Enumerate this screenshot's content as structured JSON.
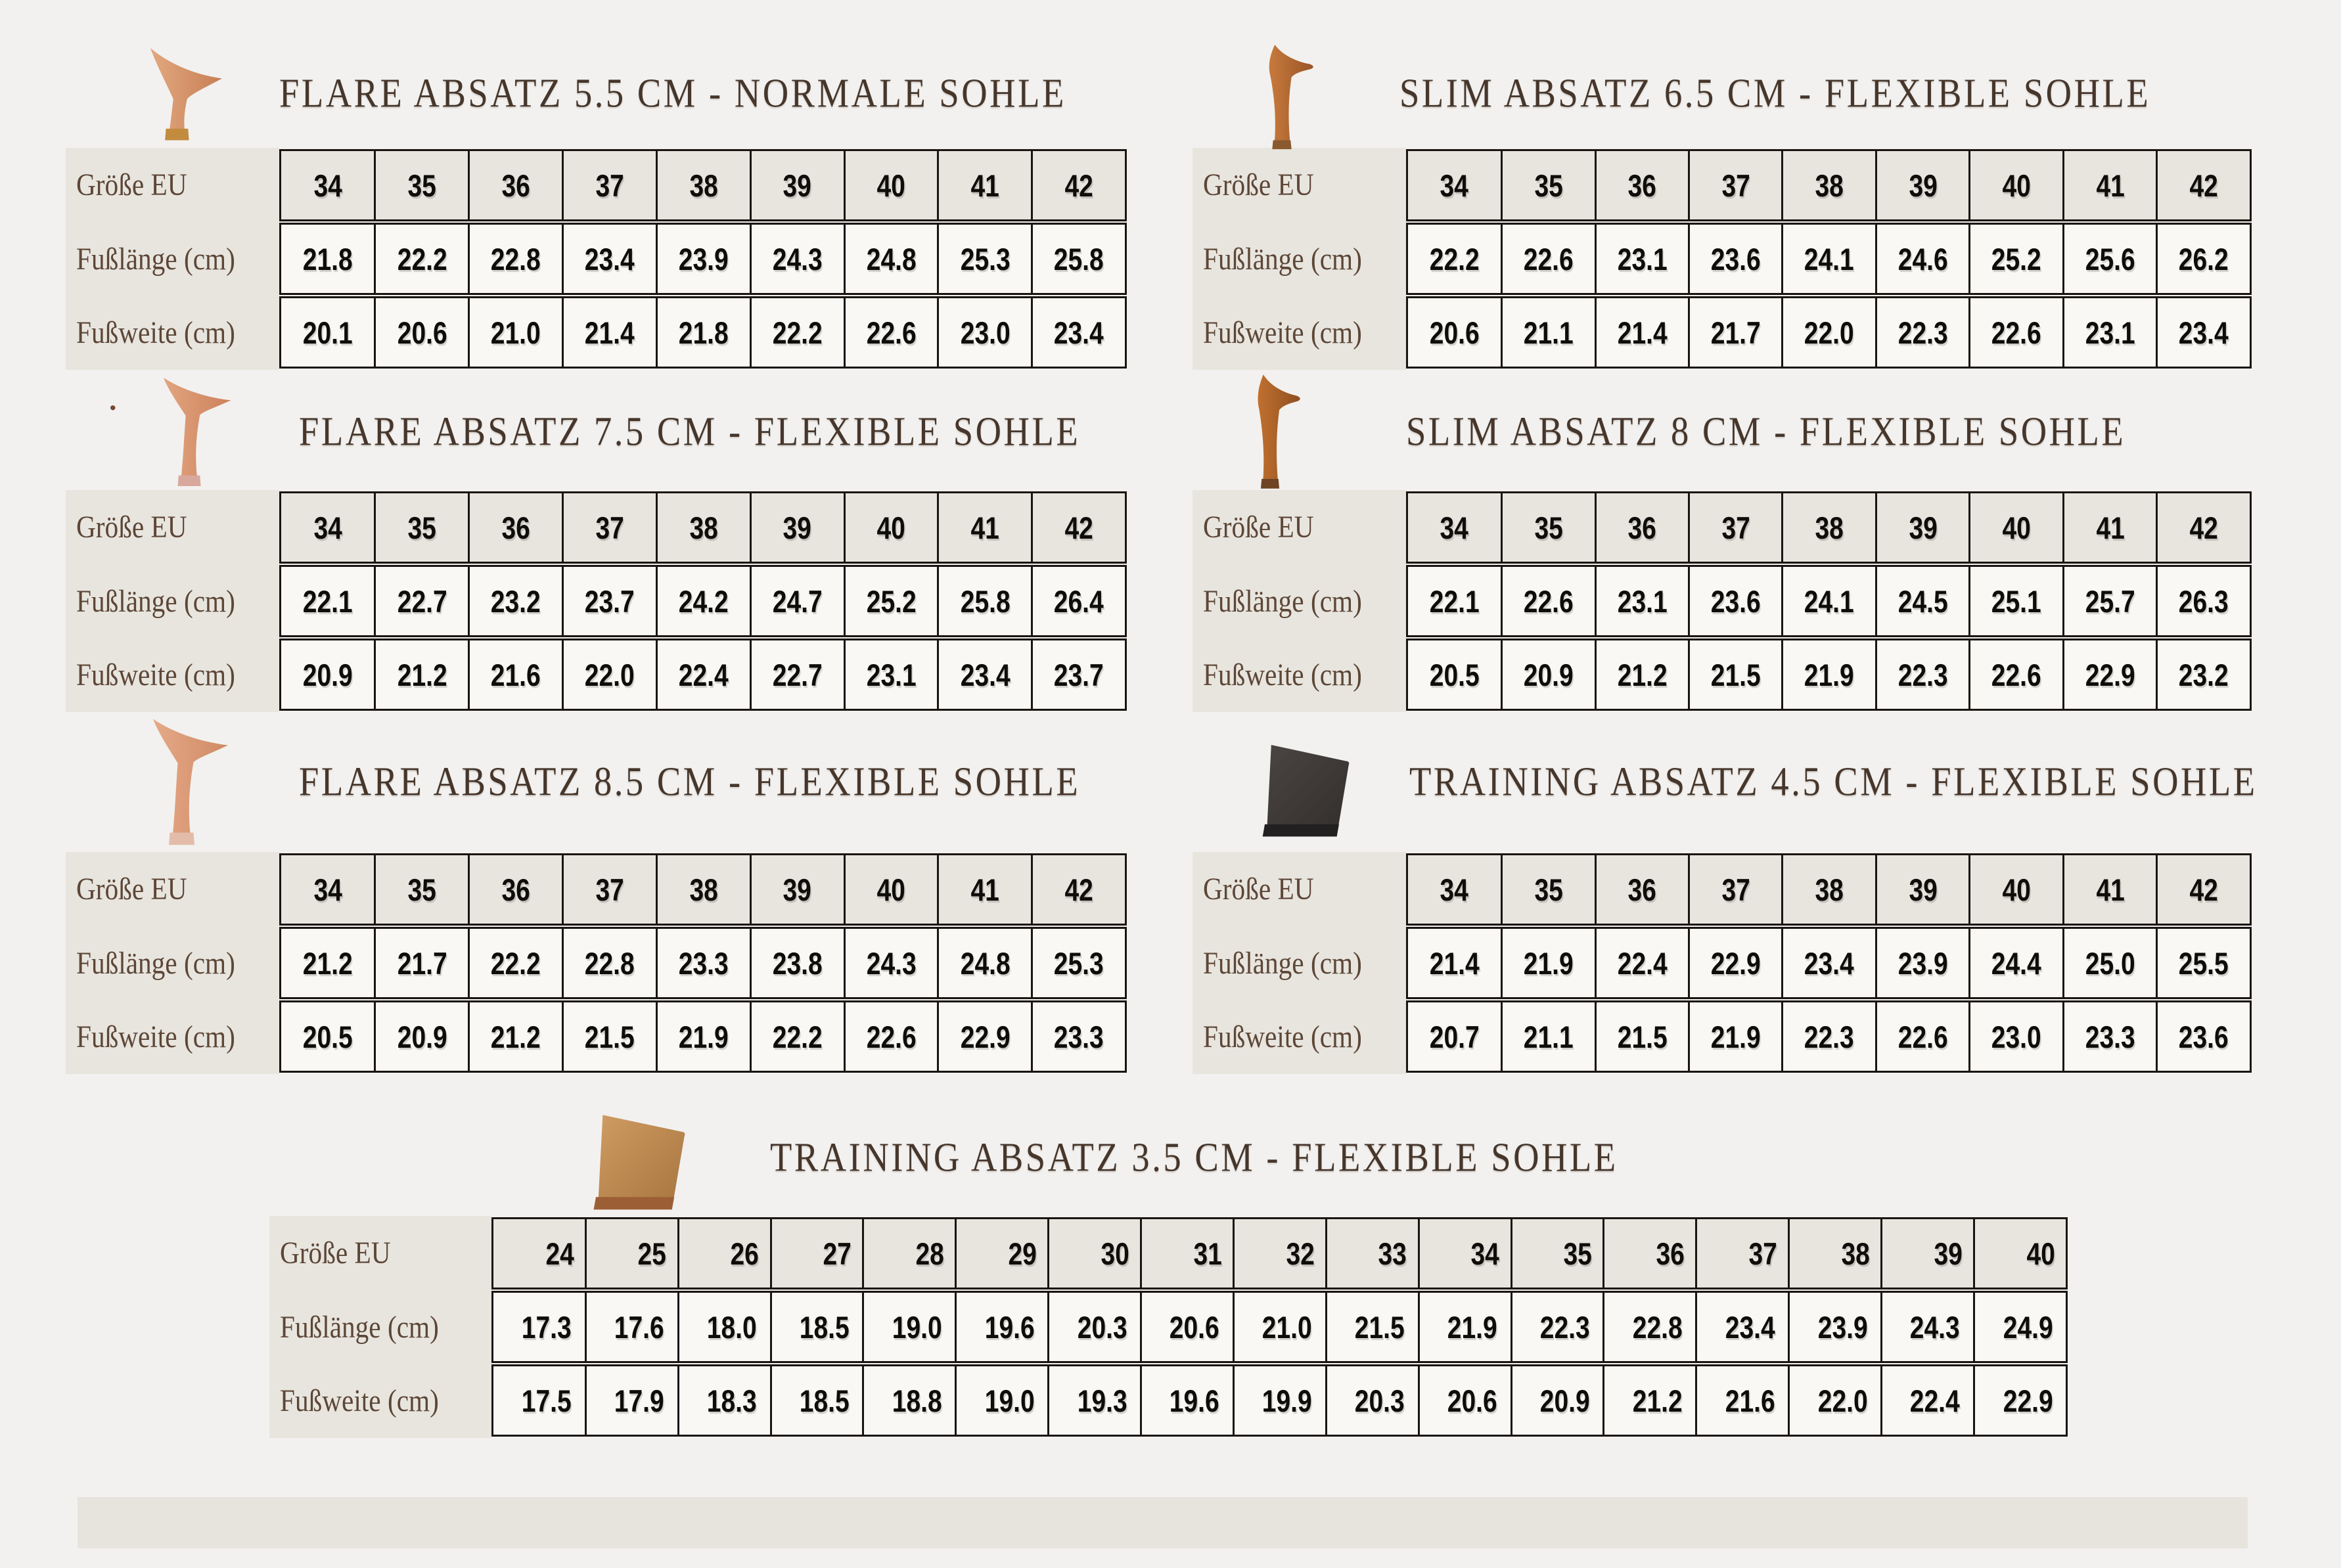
{
  "page": {
    "colors": {
      "bg": "#f2f1ef",
      "beige": "#e8e5df",
      "cell": "#f9f8f5",
      "border": "#1a1511",
      "title": "#46362b",
      "label": "#5d4737",
      "number": "#0f0d0a",
      "footer": "#e7e4de"
    },
    "stray_mark": "."
  },
  "row_labels": {
    "size": "Größe EU",
    "length": "Fußlänge (cm)",
    "width": "Fußweite (cm)"
  },
  "tables": [
    {
      "title": "FLARE ABSATZ 5.5 CM - NORMALE SOHLE",
      "icon_name": "flare-heel-icon",
      "icon_type": "flare-short",
      "icon_colors": {
        "body1": "#e2a87f",
        "body2": "#c87f55",
        "tip": "#c28b3e"
      },
      "sizes": [
        "34",
        "35",
        "36",
        "37",
        "38",
        "39",
        "40",
        "41",
        "42"
      ],
      "foot_length_cm": [
        "21.8",
        "22.2",
        "22.8",
        "23.4",
        "23.9",
        "24.3",
        "24.8",
        "25.3",
        "25.8"
      ],
      "foot_width_cm": [
        "20.1",
        "20.6",
        "21.0",
        "21.4",
        "21.8",
        "22.2",
        "22.6",
        "23.0",
        "23.4"
      ]
    },
    {
      "title": "SLIM ABSATZ 6.5 CM - FLEXIBLE SOHLE",
      "icon_name": "slim-heel-icon",
      "icon_type": "slim",
      "icon_colors": {
        "body1": "#c77a3d",
        "body2": "#9a5526",
        "tip": "#8a5a2e"
      },
      "sizes": [
        "34",
        "35",
        "36",
        "37",
        "38",
        "39",
        "40",
        "41",
        "42"
      ],
      "foot_length_cm": [
        "22.2",
        "22.6",
        "23.1",
        "23.6",
        "24.1",
        "24.6",
        "25.2",
        "25.6",
        "26.2"
      ],
      "foot_width_cm": [
        "20.6",
        "21.1",
        "21.4",
        "21.7",
        "22.0",
        "22.3",
        "22.6",
        "23.1",
        "23.4"
      ]
    },
    {
      "title": "FLARE ABSATZ 7.5 CM - FLEXIBLE SOHLE",
      "icon_name": "flare-heel-icon",
      "icon_type": "flare-tall",
      "icon_colors": {
        "body1": "#e2a47f",
        "body2": "#cc825c",
        "tip": "#d8a89c"
      },
      "sizes": [
        "34",
        "35",
        "36",
        "37",
        "38",
        "39",
        "40",
        "41",
        "42"
      ],
      "foot_length_cm": [
        "22.1",
        "22.7",
        "23.2",
        "23.7",
        "24.2",
        "24.7",
        "25.2",
        "25.8",
        "26.4"
      ],
      "foot_width_cm": [
        "20.9",
        "21.2",
        "21.6",
        "22.0",
        "22.4",
        "22.7",
        "23.1",
        "23.4",
        "23.7"
      ]
    },
    {
      "title": "SLIM ABSATZ 8 CM - FLEXIBLE SOHLE",
      "icon_name": "slim-heel-icon",
      "icon_type": "slim",
      "icon_colors": {
        "body1": "#c0702f",
        "body2": "#8f4f1f",
        "tip": "#6e4424"
      },
      "sizes": [
        "34",
        "35",
        "36",
        "37",
        "38",
        "39",
        "40",
        "41",
        "42"
      ],
      "foot_length_cm": [
        "22.1",
        "22.6",
        "23.1",
        "23.6",
        "24.1",
        "24.5",
        "25.1",
        "25.7",
        "26.3"
      ],
      "foot_width_cm": [
        "20.5",
        "20.9",
        "21.2",
        "21.5",
        "21.9",
        "22.3",
        "22.6",
        "22.9",
        "23.2"
      ]
    },
    {
      "title": "FLARE ABSATZ 8.5 CM - FLEXIBLE SOHLE",
      "icon_name": "flare-heel-icon",
      "icon_type": "flare-tall",
      "icon_colors": {
        "body1": "#e5a988",
        "body2": "#d08a64",
        "tip": "#e3bca9"
      },
      "sizes": [
        "34",
        "35",
        "36",
        "37",
        "38",
        "39",
        "40",
        "41",
        "42"
      ],
      "foot_length_cm": [
        "21.2",
        "21.7",
        "22.2",
        "22.8",
        "23.3",
        "23.8",
        "24.3",
        "24.8",
        "25.3"
      ],
      "foot_width_cm": [
        "20.5",
        "20.9",
        "21.2",
        "21.5",
        "21.9",
        "22.2",
        "22.6",
        "22.9",
        "23.3"
      ]
    },
    {
      "title": "TRAINING ABSATZ 4.5 CM - FLEXIBLE SOHLE",
      "icon_name": "training-heel-icon",
      "icon_type": "block",
      "icon_colors": {
        "body1": "#4a4543",
        "body2": "#332f2d",
        "tip": "#222020"
      },
      "sizes": [
        "34",
        "35",
        "36",
        "37",
        "38",
        "39",
        "40",
        "41",
        "42"
      ],
      "foot_length_cm": [
        "21.4",
        "21.9",
        "22.4",
        "22.9",
        "23.4",
        "23.9",
        "24.4",
        "25.0",
        "25.5"
      ],
      "foot_width_cm": [
        "20.7",
        "21.1",
        "21.5",
        "21.9",
        "22.3",
        "22.6",
        "23.0",
        "23.3",
        "23.6"
      ]
    },
    {
      "title": "TRAINING ABSATZ 3.5 CM - FLEXIBLE SOHLE",
      "icon_name": "training-heel-icon",
      "icon_type": "block",
      "icon_colors": {
        "body1": "#cf9c63",
        "body2": "#a8753f",
        "tip": "#9c5f35"
      },
      "sizes": [
        "24",
        "25",
        "26",
        "27",
        "28",
        "29",
        "30",
        "31",
        "32",
        "33",
        "34",
        "35",
        "36",
        "37",
        "38",
        "39",
        "40"
      ],
      "foot_length_cm": [
        "17.3",
        "17.6",
        "18.0",
        "18.5",
        "19.0",
        "19.6",
        "20.3",
        "20.6",
        "21.0",
        "21.5",
        "21.9",
        "22.3",
        "22.8",
        "23.4",
        "23.9",
        "24.3",
        "24.9"
      ],
      "foot_width_cm": [
        "17.5",
        "17.9",
        "18.3",
        "18.5",
        "18.8",
        "19.0",
        "19.3",
        "19.6",
        "19.9",
        "20.3",
        "20.6",
        "20.9",
        "21.2",
        "21.6",
        "22.0",
        "22.4",
        "22.9"
      ]
    }
  ]
}
